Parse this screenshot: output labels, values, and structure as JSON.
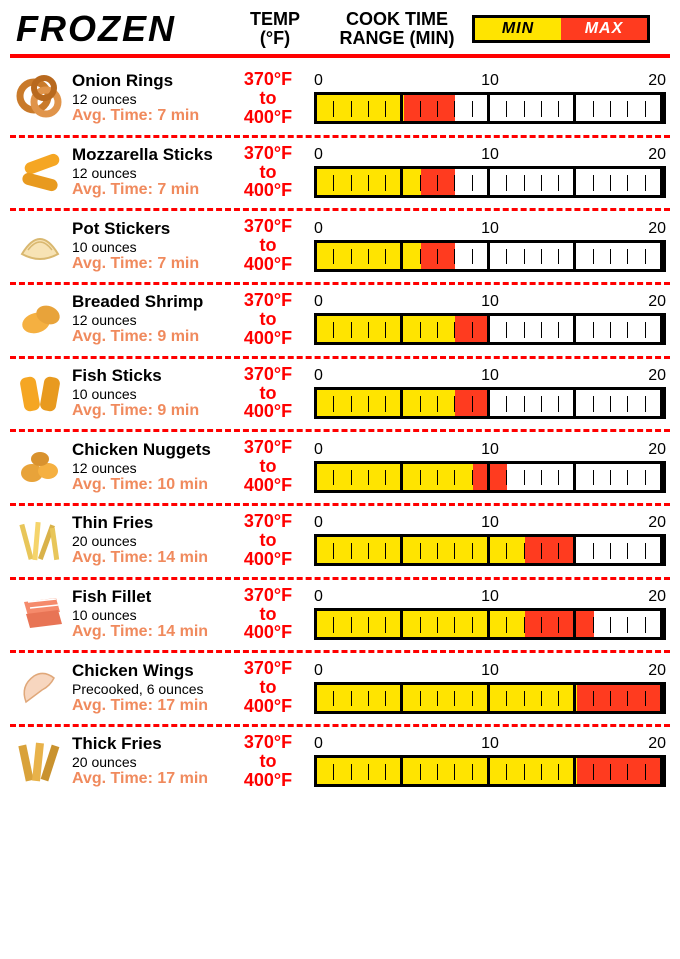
{
  "header": {
    "title": "FROZEN",
    "temp_label_line1": "TEMP",
    "temp_label_line2": "(°F)",
    "cook_label_line1": "COOK TIME",
    "cook_label_line2": "RANGE (MIN)",
    "legend_min": "MIN",
    "legend_max": "MAX"
  },
  "colors": {
    "min_fill": "#ffe400",
    "max_fill": "#ff3b1f",
    "accent_red": "#ff0000",
    "avg_orange": "#f08a5d",
    "border": "#000000",
    "background": "#ffffff"
  },
  "axis": {
    "min": 0,
    "mid": 10,
    "max": 20,
    "tick_count": 20,
    "tick_label_0": "0",
    "tick_label_10": "10",
    "tick_label_20": "20"
  },
  "temp_range": {
    "low": "370°F",
    "to": "to",
    "high": "400°F"
  },
  "items": [
    {
      "name": "Onion Rings",
      "portion": "12 ounces",
      "avg_label": "Avg. Time: 7 min",
      "min": 5,
      "max": 8,
      "icon": "onion-rings"
    },
    {
      "name": "Mozzarella Sticks",
      "portion": "12 ounces",
      "avg_label": "Avg. Time: 7 min",
      "min": 6,
      "max": 8,
      "icon": "mozzarella-sticks"
    },
    {
      "name": "Pot Stickers",
      "portion": "10 ounces",
      "avg_label": "Avg.  Time: 7 min",
      "min": 6,
      "max": 8,
      "icon": "pot-stickers"
    },
    {
      "name": "Breaded Shrimp",
      "portion": "12 ounces",
      "avg_label": "Avg. Time: 9 min",
      "min": 8,
      "max": 10,
      "icon": "breaded-shrimp"
    },
    {
      "name": "Fish Sticks",
      "portion": "10 ounces",
      "avg_label": "Avg. Time: 9 min",
      "min": 8,
      "max": 10,
      "icon": "fish-sticks"
    },
    {
      "name": "Chicken Nuggets",
      "portion": "12 ounces",
      "avg_label": "Avg. Time: 10 min",
      "min": 9,
      "max": 11,
      "icon": "chicken-nuggets"
    },
    {
      "name": "Thin Fries",
      "portion": "20 ounces",
      "avg_label": "Avg. Time: 14 min",
      "min": 12,
      "max": 15,
      "icon": "thin-fries"
    },
    {
      "name": "Fish Fillet",
      "portion": "10 ounces",
      "avg_label": "Avg. Time: 14 min",
      "min": 12,
      "max": 16,
      "icon": "fish-fillet"
    },
    {
      "name": "Chicken Wings",
      "portion": "Precooked, 6 ounces",
      "avg_label": "Avg. Time: 17 min",
      "min": 15,
      "max": 20,
      "icon": "chicken-wings"
    },
    {
      "name": "Thick Fries",
      "portion": "20 ounces",
      "avg_label": "Avg. Time: 17 min",
      "min": 15,
      "max": 20,
      "icon": "thick-fries"
    }
  ],
  "icon_svgs": {
    "onion-rings": "<svg viewBox='0 0 52 52'><circle cx='20' cy='24' r='14' fill='none' stroke='#c97a2a' stroke-width='7'/><circle cx='32' cy='30' r='12' fill='none' stroke='#e0944a' stroke-width='7'/><circle cx='30' cy='16' r='10' fill='none' stroke='#b8691e' stroke-width='6'/></svg>",
    "mozzarella-sticks": "<svg viewBox='0 0 52 52'><rect x='10' y='12' width='36' height='12' rx='6' fill='#f5a623' transform='rotate(-20 28 18)'/><rect x='8' y='30' width='36' height='12' rx='6' fill='#e89a1f' transform='rotate(15 26 36)'/></svg>",
    "pot-stickers": "<svg viewBox='0 0 52 52'><path d='M8 34 Q26 4 44 34 Q26 44 8 34 Z' fill='#f7e3b5' stroke='#d9b870' stroke-width='2'/><path d='M14 30 Q26 14 38 30' fill='none' stroke='#d9b870' stroke-width='1.5'/></svg>",
    "breaded-shrimp": "<svg viewBox='0 0 52 52'><ellipse cx='22' cy='30' rx='14' ry='10' fill='#f5b041' transform='rotate(-15 22 30)'/><ellipse cx='34' cy='22' rx='12' ry='9' fill='#e8a33a' transform='rotate(20 34 22)'/></svg>",
    "fish-sticks": "<svg viewBox='0 0 52 52'><rect x='8' y='10' width='16' height='34' rx='6' fill='#f5a623' transform='rotate(-10 16 27)'/><rect x='28' y='10' width='16' height='34' rx='6' fill='#e89a1f' transform='rotate(10 36 27)'/></svg>",
    "chicken-nuggets": "<svg viewBox='0 0 52 52'><ellipse cx='18' cy='32' rx='11' ry='9' fill='#e8a33a'/><ellipse cx='34' cy='30' rx='10' ry='8' fill='#f5b041'/><ellipse cx='26' cy='18' rx='9' ry='7' fill='#d9922e'/></svg>",
    "thin-fries": "<svg viewBox='0 0 52 52'><rect x='10' y='10' width='5' height='36' fill='#e8c65a' transform='rotate(-15 12 28)'/><rect x='20' y='8' width='5' height='38' fill='#f5d46b' transform='rotate(5 22 27)'/><rect x='30' y='10' width='5' height='36' fill='#d9b24a' transform='rotate(20 32 28)'/><rect x='38' y='14' width='5' height='32' fill='#e8c65a' transform='rotate(-8 40 30)'/></svg>",
    "fish-fillet": "<svg viewBox='0 0 52 52'><path d='M10 14 L42 10 L46 24 L14 28 Z' fill='#f58a6b'/><path d='M12 26 L44 22 L48 36 L16 40 Z' fill='#e87455'/><path d='M14 14 L42 11 M16 20 L44 17' stroke='#fff' stroke-width='1.5'/></svg>",
    "chicken-wings": "<svg viewBox='0 0 52 52'><path d='M12 40 Q6 24 20 14 Q30 8 40 16 Q36 24 28 28 Q20 34 12 40 Z' fill='#f7d6bf' stroke='#e0a87a' stroke-width='1.5'/></svg>",
    "thick-fries": "<svg viewBox='0 0 52 52'><rect x='8' y='10' width='8' height='36' fill='#d9a23a' transform='rotate(-12 12 28)'/><rect x='20' y='8' width='8' height='38' fill='#e8b24a' transform='rotate(6 24 27)'/><rect x='32' y='10' width='8' height='36' fill='#c9922e' transform='rotate(18 36 28)'/></svg>"
  }
}
